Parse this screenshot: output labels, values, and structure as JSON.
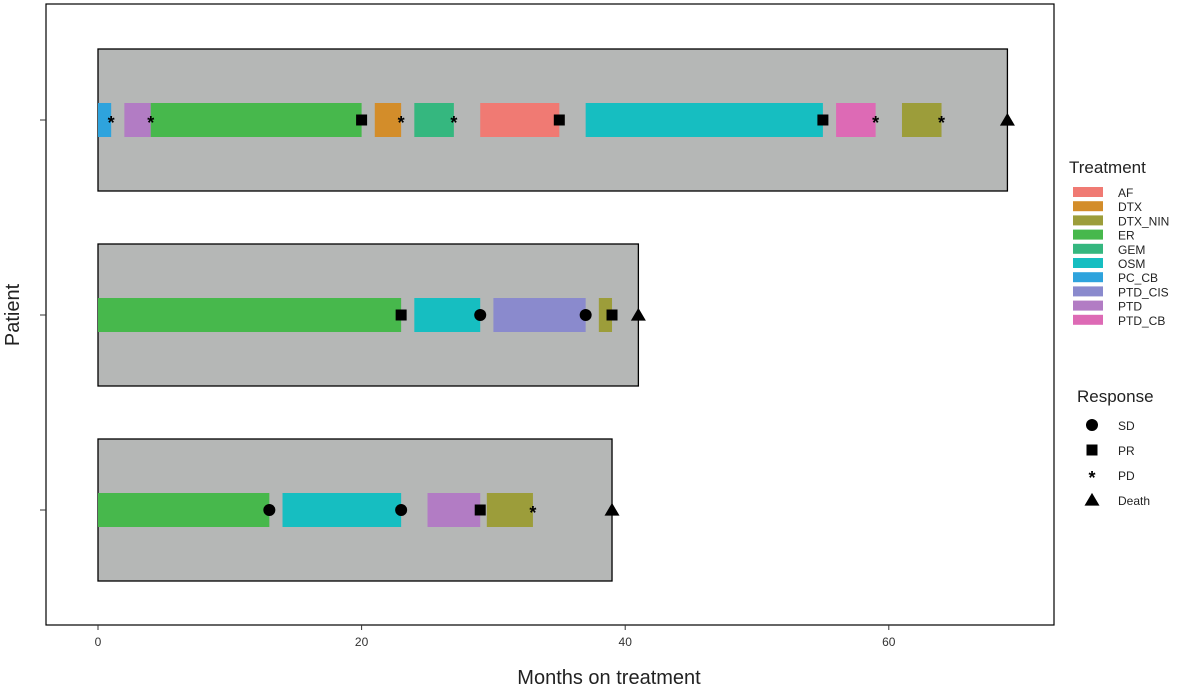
{
  "chart_data": {
    "type": "swimmer",
    "xlabel": "Months on treatment",
    "ylabel": "Patient",
    "xlim": [
      0,
      72
    ],
    "x_ticks": [
      "0",
      "20",
      "40",
      "60"
    ],
    "x_tick_values": [
      0,
      20,
      40,
      60
    ],
    "grid": false,
    "treatment_legend_title": "Treatment",
    "response_legend_title": "Response",
    "legend_position": "right",
    "treatments": [
      {
        "name": "AF",
        "color": "#F07A73"
      },
      {
        "name": "DTX",
        "color": "#D38D2A"
      },
      {
        "name": "DTX_NIN",
        "color": "#9C9D3A"
      },
      {
        "name": "ER",
        "color": "#47B84C"
      },
      {
        "name": "GEM",
        "color": "#35B77F"
      },
      {
        "name": "OSM",
        "color": "#16BEC1"
      },
      {
        "name": "PC_CB",
        "color": "#2EA3DD"
      },
      {
        "name": "PTD_CIS",
        "color": "#8A8ACD"
      },
      {
        "name": "PTD",
        "color": "#B27CC4"
      },
      {
        "name": "PTD_CB",
        "color": "#DD6AB5"
      }
    ],
    "responses": [
      {
        "name": "SD",
        "shape": "circle"
      },
      {
        "name": "PR",
        "shape": "square"
      },
      {
        "name": "PD",
        "shape": "asterisk"
      },
      {
        "name": "Death",
        "shape": "triangle"
      }
    ],
    "patients": [
      {
        "total_months": 69,
        "segments": [
          {
            "treatment": "PC_CB",
            "start": 0,
            "end": 1
          },
          {
            "treatment": "PTD",
            "start": 2,
            "end": 4
          },
          {
            "treatment": "ER",
            "start": 4,
            "end": 20
          },
          {
            "treatment": "DTX",
            "start": 21,
            "end": 23
          },
          {
            "treatment": "GEM",
            "start": 24,
            "end": 27
          },
          {
            "treatment": "AF",
            "start": 29,
            "end": 35
          },
          {
            "treatment": "OSM",
            "start": 37,
            "end": 55
          },
          {
            "treatment": "PTD_CB",
            "start": 56,
            "end": 59
          },
          {
            "treatment": "DTX_NIN",
            "start": 61,
            "end": 64
          }
        ],
        "events": [
          {
            "type": "PD",
            "x": 1
          },
          {
            "type": "PD",
            "x": 4
          },
          {
            "type": "PR",
            "x": 20
          },
          {
            "type": "PD",
            "x": 23
          },
          {
            "type": "PD",
            "x": 27
          },
          {
            "type": "PR",
            "x": 35
          },
          {
            "type": "PR",
            "x": 55
          },
          {
            "type": "PD",
            "x": 59
          },
          {
            "type": "PD",
            "x": 64
          },
          {
            "type": "Death",
            "x": 69
          }
        ]
      },
      {
        "total_months": 41,
        "segments": [
          {
            "treatment": "ER",
            "start": 0,
            "end": 23
          },
          {
            "treatment": "OSM",
            "start": 24,
            "end": 29
          },
          {
            "treatment": "PTD_CIS",
            "start": 30,
            "end": 37
          },
          {
            "treatment": "DTX_NIN",
            "start": 38,
            "end": 39
          }
        ],
        "events": [
          {
            "type": "PR",
            "x": 23
          },
          {
            "type": "SD",
            "x": 29
          },
          {
            "type": "SD",
            "x": 37
          },
          {
            "type": "PR",
            "x": 39
          },
          {
            "type": "Death",
            "x": 41
          }
        ]
      },
      {
        "total_months": 39,
        "segments": [
          {
            "treatment": "ER",
            "start": 0,
            "end": 13
          },
          {
            "treatment": "OSM",
            "start": 14,
            "end": 23
          },
          {
            "treatment": "PTD",
            "start": 25,
            "end": 29
          },
          {
            "treatment": "DTX_NIN",
            "start": 29.5,
            "end": 33
          }
        ],
        "events": [
          {
            "type": "SD",
            "x": 13
          },
          {
            "type": "SD",
            "x": 23
          },
          {
            "type": "PR",
            "x": 29
          },
          {
            "type": "PD",
            "x": 33
          },
          {
            "type": "Death",
            "x": 39
          }
        ]
      }
    ]
  }
}
